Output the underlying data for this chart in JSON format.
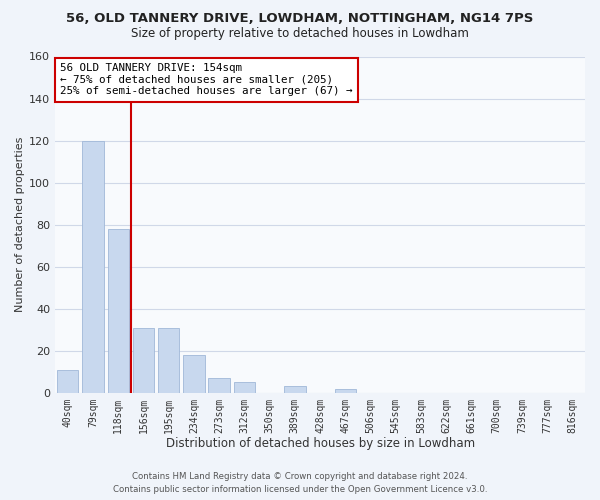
{
  "title": "56, OLD TANNERY DRIVE, LOWDHAM, NOTTINGHAM, NG14 7PS",
  "subtitle": "Size of property relative to detached houses in Lowdham",
  "xlabel": "Distribution of detached houses by size in Lowdham",
  "ylabel": "Number of detached properties",
  "bar_labels": [
    "40sqm",
    "79sqm",
    "118sqm",
    "156sqm",
    "195sqm",
    "234sqm",
    "273sqm",
    "312sqm",
    "350sqm",
    "389sqm",
    "428sqm",
    "467sqm",
    "506sqm",
    "545sqm",
    "583sqm",
    "622sqm",
    "661sqm",
    "700sqm",
    "739sqm",
    "777sqm",
    "816sqm"
  ],
  "bar_values": [
    11,
    120,
    78,
    31,
    31,
    18,
    7,
    5,
    0,
    3,
    0,
    2,
    0,
    0,
    0,
    0,
    0,
    0,
    0,
    0,
    0
  ],
  "bar_color": "#c8d8ee",
  "bar_edge_color": "#a0b8d8",
  "vline_color": "#cc0000",
  "ylim": [
    0,
    160
  ],
  "yticks": [
    0,
    20,
    40,
    60,
    80,
    100,
    120,
    140,
    160
  ],
  "annotation_title": "56 OLD TANNERY DRIVE: 154sqm",
  "annotation_line1": "← 75% of detached houses are smaller (205)",
  "annotation_line2": "25% of semi-detached houses are larger (67) →",
  "annotation_box_color": "#ffffff",
  "annotation_box_edge": "#cc0000",
  "footer1": "Contains HM Land Registry data © Crown copyright and database right 2024.",
  "footer2": "Contains public sector information licensed under the Open Government Licence v3.0.",
  "bg_color": "#f0f4fa",
  "plot_bg_color": "#f8fafd",
  "grid_color": "#d0d8e8",
  "title_color": "#222222",
  "axis_label_color": "#333333",
  "tick_color": "#333333",
  "footer_color": "#555555"
}
